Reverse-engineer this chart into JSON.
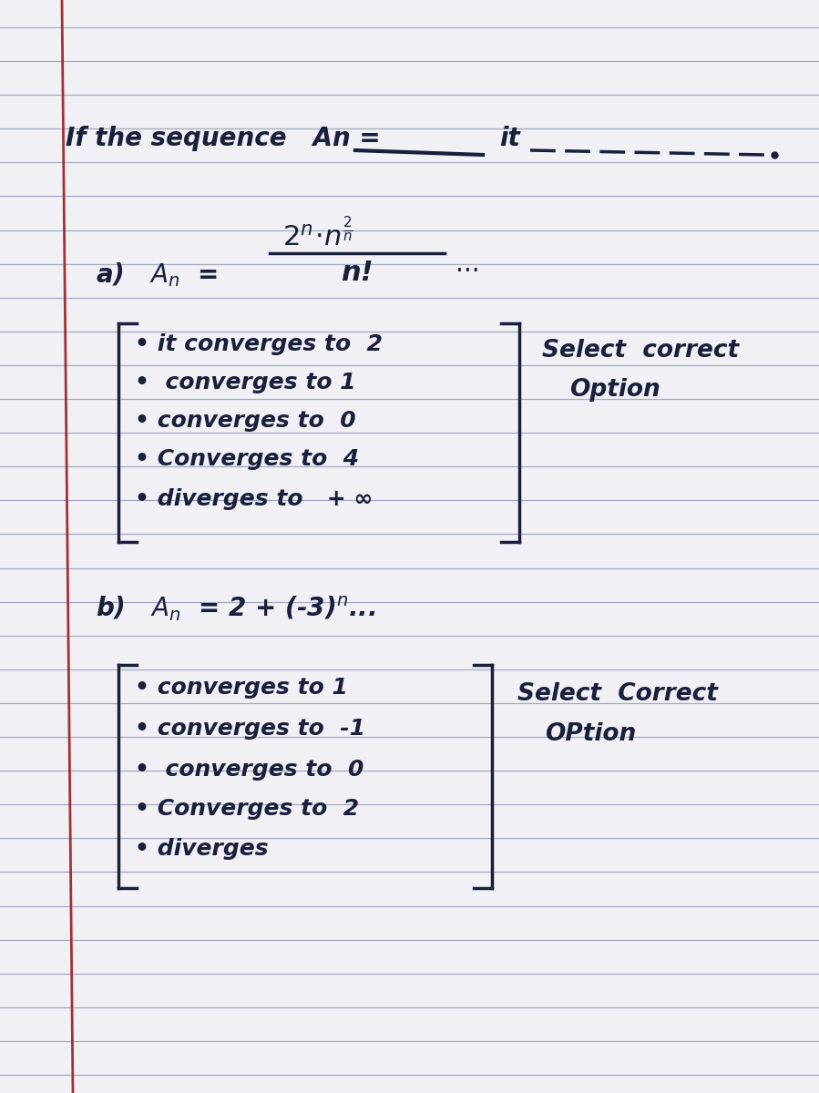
{
  "bg_color": "#f0f0f5",
  "line_color": "#9099b0",
  "ink_color": "#1a1f3a",
  "red_color": "#9b1c1c",
  "num_lines": 32,
  "part_a_options": [
    "• it converges to  2",
    "•  converges to 1",
    "• converges to  0",
    "• Converges to  4",
    "• diverges to   + ∞"
  ],
  "part_a_select_line1": "Select  correct",
  "part_a_select_line2": "Option",
  "part_b_options": [
    "• converges to 1",
    "• converges to  -1",
    "•  converges to  0",
    "• Converges to  2",
    "• diverges"
  ],
  "part_b_select_line1": "Select  Correct",
  "part_b_select_line2": "OPtion"
}
